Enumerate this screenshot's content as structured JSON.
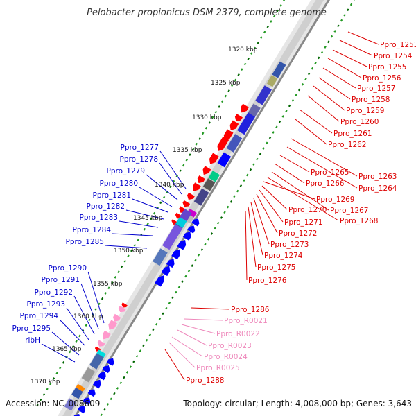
{
  "title": "Pelobacter propionicus DSM 2379, complete genome",
  "footer": {
    "accession": "Accession: NC_008609",
    "summary": "Topology: circular; Length: 4,008,000 bp; Genes: 3,643"
  },
  "colors": {
    "cds_forward": "#0000ff",
    "cds_reverse": "#ff0000",
    "rna": "#ff99cc",
    "label_forward": "#0000cc",
    "label_reverse": "#dd0000",
    "label_rna": "#ee88bb",
    "backbone": "#888888",
    "tick_major": "#006600",
    "tick_minor": "#229922"
  },
  "scale_labels": [
    "1320 kbp",
    "1325 kbp",
    "1330 kbp",
    "1335 kbp",
    "1340 kbp",
    "1345 kbp",
    "1350 kbp",
    "1355 kbp",
    "1360 kbp",
    "1365 kbp",
    "1370 kbp"
  ],
  "labels_right": [
    {
      "text": "Ppro_1253",
      "kind": "rev"
    },
    {
      "text": "Ppro_1254",
      "kind": "rev"
    },
    {
      "text": "Ppro_1255",
      "kind": "rev"
    },
    {
      "text": "Ppro_1256",
      "kind": "rev"
    },
    {
      "text": "Ppro_1257",
      "kind": "rev"
    },
    {
      "text": "Ppro_1258",
      "kind": "rev"
    },
    {
      "text": "Ppro_1259",
      "kind": "rev"
    },
    {
      "text": "Ppro_1260",
      "kind": "rev"
    },
    {
      "text": "Ppro_1261",
      "kind": "rev"
    },
    {
      "text": "Ppro_1262",
      "kind": "rev"
    },
    {
      "text": "Ppro_1263",
      "kind": "rev"
    },
    {
      "text": "Ppro_1264",
      "kind": "rev"
    },
    {
      "text": "Ppro_1265",
      "kind": "rev"
    },
    {
      "text": "Ppro_1266",
      "kind": "rev"
    },
    {
      "text": "Ppro_1267",
      "kind": "rev"
    },
    {
      "text": "Ppro_1268",
      "kind": "rev"
    },
    {
      "text": "Ppro_1269",
      "kind": "rev"
    },
    {
      "text": "Ppro_1270",
      "kind": "rev"
    },
    {
      "text": "Ppro_1271",
      "kind": "rev"
    },
    {
      "text": "Ppro_1272",
      "kind": "rev"
    },
    {
      "text": "Ppro_1273",
      "kind": "rev"
    },
    {
      "text": "Ppro_1274",
      "kind": "rev"
    },
    {
      "text": "Ppro_1275",
      "kind": "rev"
    },
    {
      "text": "Ppro_1276",
      "kind": "rev"
    },
    {
      "text": "Ppro_1286",
      "kind": "rev"
    },
    {
      "text": "Ppro_R0021",
      "kind": "rna"
    },
    {
      "text": "Ppro_R0022",
      "kind": "rna"
    },
    {
      "text": "Ppro_R0023",
      "kind": "rna"
    },
    {
      "text": "Ppro_R0024",
      "kind": "rna"
    },
    {
      "text": "Ppro_R0025",
      "kind": "rna"
    },
    {
      "text": "Ppro_1288",
      "kind": "rev"
    }
  ],
  "labels_left": [
    {
      "text": "Ppro_1277",
      "kind": "fwd"
    },
    {
      "text": "Ppro_1278",
      "kind": "fwd"
    },
    {
      "text": "Ppro_1279",
      "kind": "fwd"
    },
    {
      "text": "Ppro_1280",
      "kind": "fwd"
    },
    {
      "text": "Ppro_1281",
      "kind": "fwd"
    },
    {
      "text": "Ppro_1282",
      "kind": "fwd"
    },
    {
      "text": "Ppro_1283",
      "kind": "fwd"
    },
    {
      "text": "Ppro_1284",
      "kind": "fwd"
    },
    {
      "text": "Ppro_1285",
      "kind": "fwd"
    },
    {
      "text": "Ppro_1290",
      "kind": "fwd"
    },
    {
      "text": "Ppro_1291",
      "kind": "fwd"
    },
    {
      "text": "Ppro_1292",
      "kind": "fwd"
    },
    {
      "text": "Ppro_1293",
      "kind": "fwd"
    },
    {
      "text": "Ppro_1294",
      "kind": "fwd"
    },
    {
      "text": "Ppro_1295",
      "kind": "fwd"
    },
    {
      "text": "ribH",
      "kind": "fwd"
    }
  ]
}
